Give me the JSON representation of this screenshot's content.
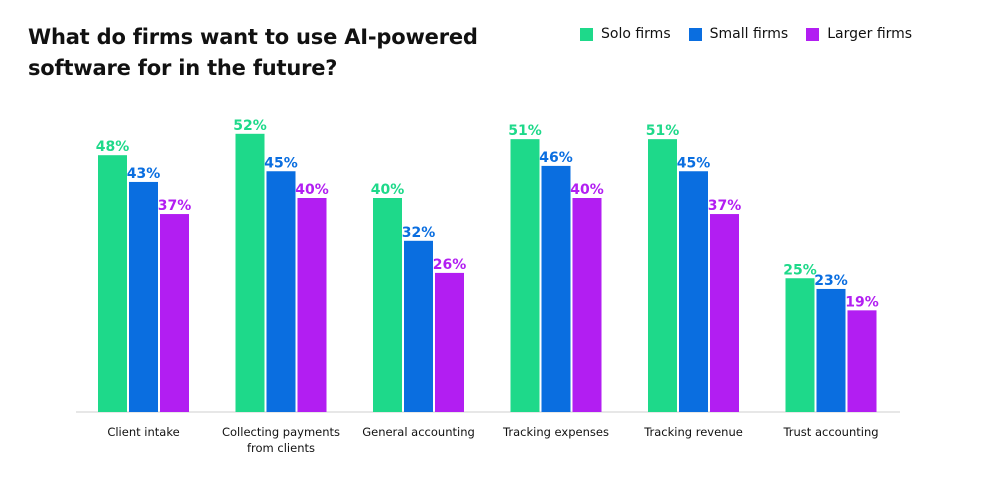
{
  "chart_data": {
    "type": "bar",
    "title": "What do firms want to use AI-powered software for in the future?",
    "categories": [
      [
        "Client intake"
      ],
      [
        "Collecting payments",
        "from clients"
      ],
      [
        "General accounting"
      ],
      [
        "Tracking expenses"
      ],
      [
        "Tracking revenue"
      ],
      [
        "Trust accounting"
      ]
    ],
    "series": [
      {
        "name": "Solo firms",
        "color": "#1ed98a",
        "values": [
          48,
          52,
          40,
          51,
          51,
          25
        ]
      },
      {
        "name": "Small firms",
        "color": "#0a6ee0",
        "values": [
          43,
          45,
          32,
          46,
          45,
          23
        ]
      },
      {
        "name": "Larger firms",
        "color": "#b21ef2",
        "values": [
          37,
          40,
          26,
          40,
          37,
          19
        ]
      }
    ],
    "value_suffix": "%",
    "ylim": [
      0,
      55
    ],
    "legend_position": "top-right",
    "grid": false
  }
}
